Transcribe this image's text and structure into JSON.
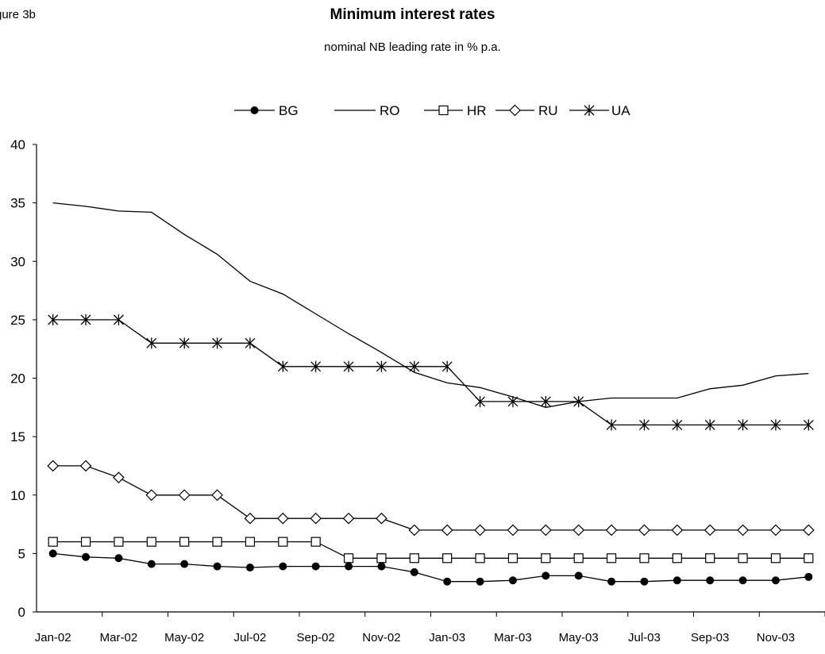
{
  "figure_label": "gure 3b",
  "chart_data": {
    "type": "line",
    "title": "Minimum interest rates",
    "subtitle": "nominal NB leading rate in % p.a.",
    "xlabel": "",
    "ylabel": "",
    "ylim": [
      0,
      40
    ],
    "yticks": [
      0,
      5,
      10,
      15,
      20,
      25,
      30,
      35,
      40
    ],
    "x": [
      "Jan-02",
      "Feb-02",
      "Mar-02",
      "Apr-02",
      "May-02",
      "Jun-02",
      "Jul-02",
      "Aug-02",
      "Sep-02",
      "Oct-02",
      "Nov-02",
      "Dec-02",
      "Jan-03",
      "Feb-03",
      "Mar-03",
      "Apr-03",
      "May-03",
      "Jun-03",
      "Jul-03",
      "Aug-03",
      "Sep-03",
      "Oct-03",
      "Nov-03",
      "Dec-03"
    ],
    "xtick_labels": [
      "Jan-02",
      "Mar-02",
      "May-02",
      "Jul-02",
      "Sep-02",
      "Nov-02",
      "Jan-03",
      "Mar-03",
      "May-03",
      "Jul-03",
      "Sep-03",
      "Nov-03"
    ],
    "grid": false,
    "legend_position": "top",
    "series": [
      {
        "name": "BG",
        "marker": "filled-circle",
        "values": [
          5.0,
          4.7,
          4.6,
          4.1,
          4.1,
          3.9,
          3.8,
          3.9,
          3.9,
          3.9,
          3.9,
          3.4,
          2.6,
          2.6,
          2.7,
          3.1,
          3.1,
          2.6,
          2.6,
          2.7,
          2.7,
          2.7,
          2.7,
          3.0
        ]
      },
      {
        "name": "RO",
        "marker": "none",
        "values": [
          35.0,
          34.7,
          34.3,
          34.2,
          32.3,
          30.6,
          28.3,
          27.2,
          25.5,
          23.8,
          22.2,
          20.5,
          19.6,
          19.2,
          18.4,
          17.5,
          18.0,
          18.3,
          18.3,
          18.3,
          19.1,
          19.4,
          20.2,
          20.4
        ]
      },
      {
        "name": "HR",
        "marker": "open-square",
        "values": [
          6.0,
          6.0,
          6.0,
          6.0,
          6.0,
          6.0,
          6.0,
          6.0,
          6.0,
          4.6,
          4.6,
          4.6,
          4.6,
          4.6,
          4.6,
          4.6,
          4.6,
          4.6,
          4.6,
          4.6,
          4.6,
          4.6,
          4.6,
          4.6
        ]
      },
      {
        "name": "RU",
        "marker": "open-diamond",
        "values": [
          12.5,
          12.5,
          11.5,
          10.0,
          10.0,
          10.0,
          8.0,
          8.0,
          8.0,
          8.0,
          8.0,
          7.0,
          7.0,
          7.0,
          7.0,
          7.0,
          7.0,
          7.0,
          7.0,
          7.0,
          7.0,
          7.0,
          7.0,
          7.0
        ]
      },
      {
        "name": "UA",
        "marker": "asterisk",
        "values": [
          25.0,
          25.0,
          25.0,
          23.0,
          23.0,
          23.0,
          23.0,
          21.0,
          21.0,
          21.0,
          21.0,
          21.0,
          21.0,
          18.0,
          18.0,
          18.0,
          18.0,
          16.0,
          16.0,
          16.0,
          16.0,
          16.0,
          16.0,
          16.0
        ]
      }
    ]
  }
}
